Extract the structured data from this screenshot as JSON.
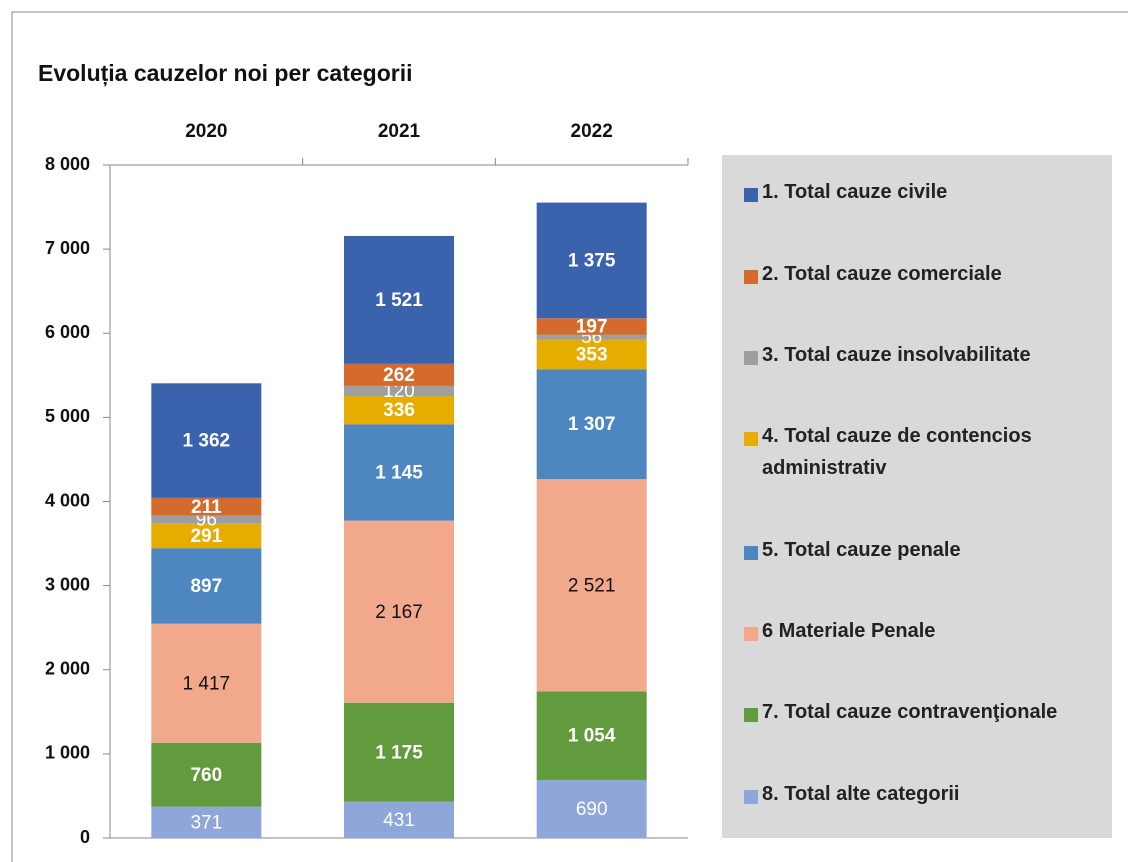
{
  "chart_data": {
    "type": "stacked_bar",
    "title": "Evoluția cauzelor noi per categorii",
    "categories": [
      "2020",
      "2021",
      "2022"
    ],
    "ylim": [
      0,
      8000
    ],
    "yticks": [
      {
        "value": 0,
        "label": "0"
      },
      {
        "value": 1000,
        "label": "1 000"
      },
      {
        "value": 2000,
        "label": "2 000"
      },
      {
        "value": 3000,
        "label": "3 000"
      },
      {
        "value": 4000,
        "label": "4 000"
      },
      {
        "value": 5000,
        "label": "5 000"
      },
      {
        "value": 6000,
        "label": "6 000"
      },
      {
        "value": 7000,
        "label": "7 000"
      },
      {
        "value": 8000,
        "label": "8 000"
      }
    ],
    "legend": "right",
    "series": [
      {
        "name": "8. Total alte categorii",
        "color": "#8ea6d9",
        "values": [
          371,
          431,
          690
        ],
        "value_labels": [
          "371",
          "431",
          "690"
        ]
      },
      {
        "name": "7. Total cauze contravenţionale",
        "color": "#629b3e",
        "values": [
          760,
          1175,
          1054
        ],
        "value_labels": [
          "760",
          "1 175",
          "1 054"
        ]
      },
      {
        "name": "6 Materiale Penale",
        "color": "#f2a88a",
        "values": [
          1417,
          2167,
          2521
        ],
        "value_labels": [
          "1 417",
          "2 167",
          "2 521"
        ]
      },
      {
        "name": "5. Total cauze penale",
        "color": "#4e86c0",
        "values": [
          897,
          1145,
          1307
        ],
        "value_labels": [
          "897",
          "1 145",
          "1 307"
        ]
      },
      {
        "name": "4. Total cauze de contencios administrativ",
        "color": "#e6ac00",
        "values": [
          291,
          336,
          353
        ],
        "value_labels": [
          "291",
          "336",
          "353"
        ]
      },
      {
        "name": "3. Total cauze insolvabilitate",
        "color": "#9e9e9e",
        "values": [
          96,
          120,
          56
        ],
        "value_labels": [
          "96",
          "120",
          "56"
        ]
      },
      {
        "name": "2. Total cauze comerciale",
        "color": "#d46a2c",
        "values": [
          211,
          262,
          197
        ],
        "value_labels": [
          "211",
          "262",
          "197"
        ]
      },
      {
        "name": "1. Total cauze civile",
        "color": "#3a62ad",
        "values": [
          1362,
          1521,
          1375
        ],
        "value_labels": [
          "1 362",
          "1 521",
          "1 375"
        ]
      }
    ]
  }
}
